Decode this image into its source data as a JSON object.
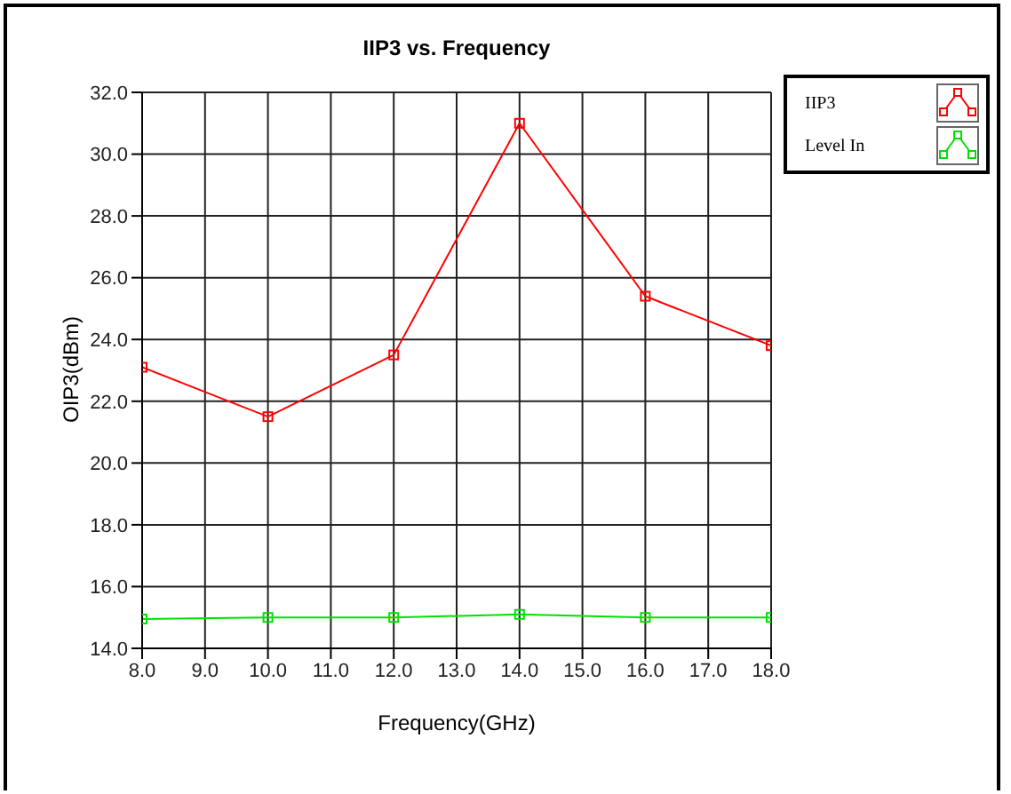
{
  "chart_data": {
    "type": "line",
    "title": "IIP3 vs. Frequency",
    "xlabel": "Frequency(GHz)",
    "ylabel": "OIP3(dBm)",
    "x": [
      8,
      10,
      12,
      14,
      16,
      18
    ],
    "series": [
      {
        "name": "IIP3",
        "color": "#ff0000",
        "values": [
          23.1,
          21.5,
          23.5,
          31.0,
          25.4,
          23.8
        ]
      },
      {
        "name": "Level In",
        "color": "#00e000",
        "values": [
          14.95,
          15.0,
          15.0,
          15.1,
          15.0,
          15.0
        ]
      }
    ],
    "xlim": [
      8,
      18
    ],
    "xticks": [
      {
        "value": 8,
        "label": "8.0"
      },
      {
        "value": 9,
        "label": "9.0"
      },
      {
        "value": 10,
        "label": "10.0"
      },
      {
        "value": 11,
        "label": "11.0"
      },
      {
        "value": 12,
        "label": "12.0"
      },
      {
        "value": 13,
        "label": "13.0"
      },
      {
        "value": 14,
        "label": "14.0"
      },
      {
        "value": 15,
        "label": "15.0"
      },
      {
        "value": 16,
        "label": "16.0"
      },
      {
        "value": 17,
        "label": "17.0"
      },
      {
        "value": 18,
        "label": "18.0"
      }
    ],
    "ylim": [
      14,
      32
    ],
    "yticks": [
      {
        "value": 14,
        "label": "14.0"
      },
      {
        "value": 16,
        "label": "16.0"
      },
      {
        "value": 18,
        "label": "18.0"
      },
      {
        "value": 20,
        "label": "20.0"
      },
      {
        "value": 22,
        "label": "22.0"
      },
      {
        "value": 24,
        "label": "24.0"
      },
      {
        "value": 26,
        "label": "26.0"
      },
      {
        "value": 28,
        "label": "28.0"
      },
      {
        "value": 30,
        "label": "30.0"
      },
      {
        "value": 32,
        "label": "32.0"
      }
    ],
    "grid": true,
    "legend": "top right",
    "marker": "square",
    "line_style": "solid"
  }
}
